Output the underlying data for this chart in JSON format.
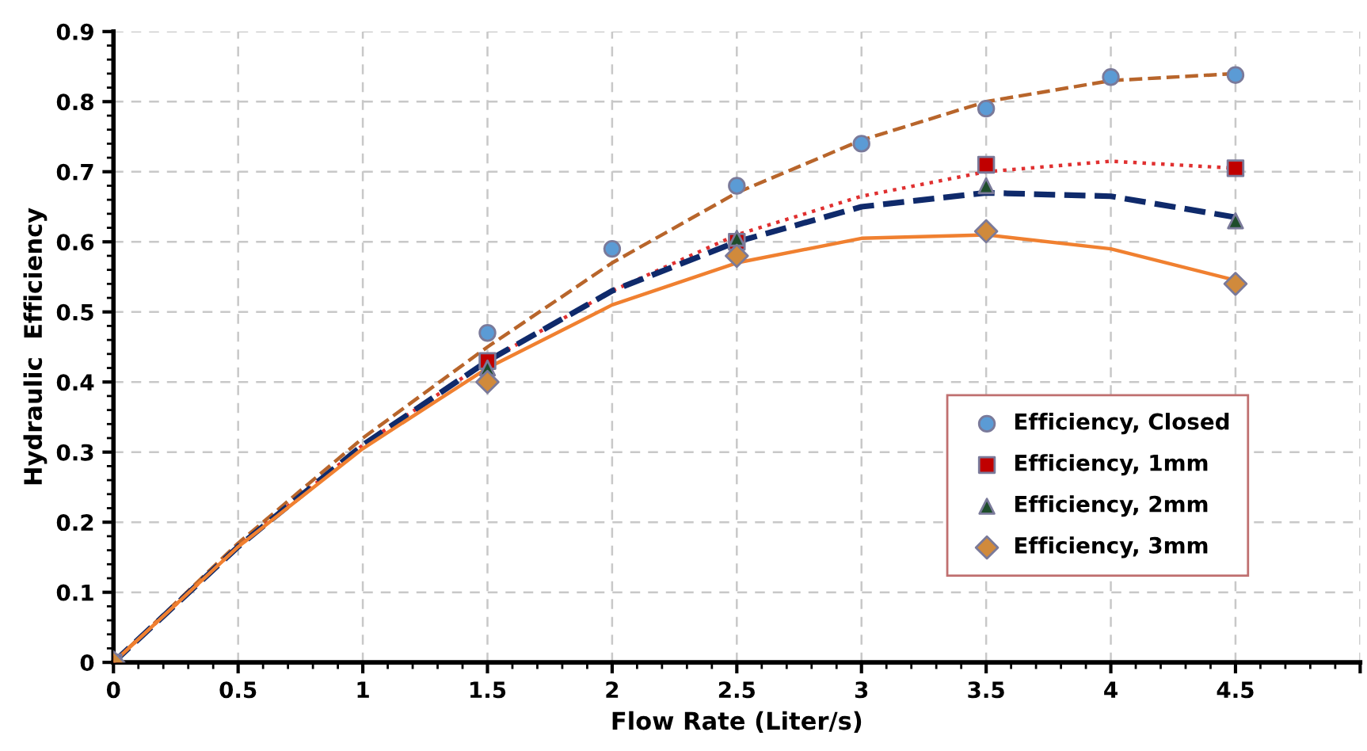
{
  "chart_data": {
    "type": "scatter",
    "xlabel": "Flow Rate (Liter/s)",
    "ylabel": "Hydraulic  Efficiency",
    "xlim": [
      0,
      5
    ],
    "ylim": [
      0,
      0.9
    ],
    "xticks": [
      0,
      0.5,
      1,
      1.5,
      2,
      2.5,
      3,
      3.5,
      4,
      4.5,
      {
        "value": 5,
        "label": null
      }
    ],
    "yticks": [
      0,
      0.1,
      0.2,
      0.3,
      0.4,
      0.5,
      0.6,
      0.7,
      0.8,
      0.9
    ],
    "grid": true,
    "legend": "bottom right",
    "series": [
      {
        "name": "Efficiency, Closed",
        "marker": "circle",
        "color": "#5b9bd5",
        "x": [
          1.5,
          2,
          2.5,
          3,
          3.5,
          4,
          4.5
        ],
        "values": [
          0.47,
          0.59,
          0.68,
          0.74,
          0.79,
          0.835,
          0.838
        ]
      },
      {
        "name": "Efficiency, 1mm",
        "marker": "square",
        "color": "#c00000",
        "x": [
          0,
          1.5,
          2.5,
          3.5,
          4.5
        ],
        "values": [
          0,
          0.43,
          0.6,
          0.71,
          0.705
        ]
      },
      {
        "name": "Efficiency, 2mm",
        "marker": "triangle",
        "color": "#1e4d2b",
        "x": [
          1.5,
          2.5,
          3.5,
          4.5
        ],
        "values": [
          0.42,
          0.605,
          0.68,
          0.63
        ]
      },
      {
        "name": "Efficiency, 3mm",
        "marker": "diamond",
        "color": "#d08a3c",
        "x": [
          0,
          1.5,
          2.5,
          3.5,
          4.5
        ],
        "values": [
          0,
          0.4,
          0.58,
          0.615,
          0.54
        ]
      },
      {
        "type": "line",
        "marker": "none",
        "line_style": "dashed",
        "color": "#b8652b",
        "x": [
          0,
          0.5,
          1,
          1.5,
          2,
          2.5,
          3,
          3.5,
          4,
          4.5
        ],
        "values": [
          0,
          0.17,
          0.32,
          0.45,
          0.57,
          0.67,
          0.745,
          0.8,
          0.83,
          0.84
        ]
      },
      {
        "type": "line",
        "marker": "none",
        "line_style": "dotted",
        "color": "#e03030",
        "x": [
          0,
          0.5,
          1,
          1.5,
          2,
          2.5,
          3,
          3.5,
          4,
          4.5
        ],
        "values": [
          0,
          0.165,
          0.31,
          0.43,
          0.53,
          0.61,
          0.665,
          0.7,
          0.715,
          0.705
        ]
      },
      {
        "type": "line",
        "marker": "none",
        "line_style": "dashed",
        "color": "#0f2a6b",
        "x": [
          0,
          0.5,
          1,
          1.5,
          2,
          2.5,
          3,
          3.5,
          4,
          4.5
        ],
        "values": [
          0,
          0.165,
          0.31,
          0.43,
          0.53,
          0.6,
          0.65,
          0.67,
          0.665,
          0.635
        ]
      },
      {
        "type": "line",
        "marker": "none",
        "line_style": "solid",
        "color": "#f08030",
        "x": [
          0,
          0.5,
          1,
          1.5,
          2,
          2.5,
          3,
          3.5,
          4,
          4.5
        ],
        "values": [
          0,
          0.165,
          0.305,
          0.42,
          0.51,
          0.57,
          0.605,
          0.61,
          0.59,
          0.545
        ]
      }
    ]
  }
}
